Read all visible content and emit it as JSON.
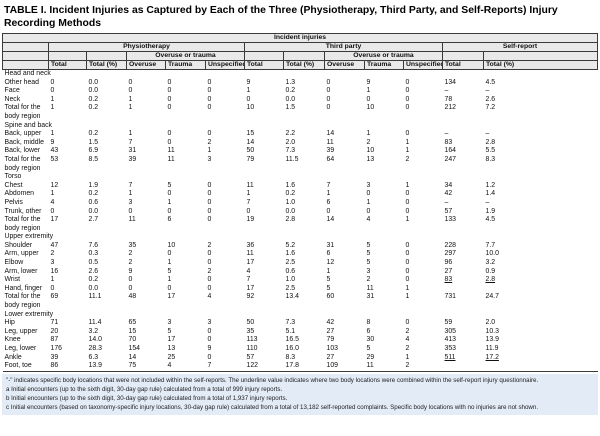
{
  "title": "TABLE I. Incident Injuries as Captured by Each of the Three (Physiotherapy, Third Party, and Self-Reports) Injury Recording Methods",
  "table": {
    "spanner": "Incident injuries",
    "groups": {
      "physiotherapy": "Physiotherapy",
      "third_party": "Third party",
      "self_report": "Self-report"
    },
    "overuse_or_trauma": "Overuse or trauma",
    "columns": [
      "Total",
      "Total (%)",
      "Overuse",
      "Trauma",
      "Unspecified",
      "Total",
      "Total (%)",
      "Overuse",
      "Trauma",
      "Unspecified",
      "Total",
      "Total (%)"
    ],
    "sections": [
      {
        "header": "Head and neck",
        "rows": [
          {
            "label": "Other head",
            "values": [
              "0",
              "0.0",
              "0",
              "0",
              "0",
              "9",
              "1.3",
              "0",
              "9",
              "0",
              "134",
              "4.5"
            ]
          },
          {
            "label": "Face",
            "values": [
              "0",
              "0.0",
              "0",
              "0",
              "0",
              "1",
              "0.2",
              "0",
              "1",
              "0",
              "–",
              "–"
            ]
          },
          {
            "label": "Neck",
            "values": [
              "1",
              "0.2",
              "1",
              "0",
              "0",
              "0",
              "0.0",
              "0",
              "0",
              "0",
              "78",
              "2.6"
            ]
          },
          {
            "label": "Total for the body region",
            "values": [
              "1",
              "0.2",
              "1",
              "0",
              "0",
              "10",
              "1.5",
              "0",
              "10",
              "0",
              "212",
              "7.2"
            ]
          }
        ]
      },
      {
        "header": "Spine and back",
        "rows": [
          {
            "label": "Back, upper",
            "values": [
              "1",
              "0.2",
              "1",
              "0",
              "0",
              "15",
              "2.2",
              "14",
              "1",
              "0",
              "–",
              "–"
            ]
          },
          {
            "label": "Back, middle",
            "values": [
              "9",
              "1.5",
              "7",
              "0",
              "2",
              "14",
              "2.0",
              "11",
              "2",
              "1",
              "83",
              "2.8"
            ]
          },
          {
            "label": "Back, lower",
            "values": [
              "43",
              "6.9",
              "31",
              "11",
              "1",
              "50",
              "7.3",
              "39",
              "10",
              "1",
              "164",
              "5.5"
            ]
          },
          {
            "label": "Total for the body region",
            "values": [
              "53",
              "8.5",
              "39",
              "11",
              "3",
              "79",
              "11.5",
              "64",
              "13",
              "2",
              "247",
              "8.3"
            ]
          }
        ]
      },
      {
        "header": "Torso",
        "rows": [
          {
            "label": "Chest",
            "values": [
              "12",
              "1.9",
              "7",
              "5",
              "0",
              "11",
              "1.6",
              "7",
              "3",
              "1",
              "34",
              "1.2"
            ]
          },
          {
            "label": "Abdomen",
            "values": [
              "1",
              "0.2",
              "1",
              "0",
              "0",
              "1",
              "0.2",
              "1",
              "0",
              "0",
              "42",
              "1.4"
            ]
          },
          {
            "label": "Pelvis",
            "values": [
              "4",
              "0.6",
              "3",
              "1",
              "0",
              "7",
              "1.0",
              "6",
              "1",
              "0",
              "–",
              "–"
            ]
          },
          {
            "label": "Trunk, other",
            "values": [
              "0",
              "0.0",
              "0",
              "0",
              "0",
              "0",
              "0.0",
              "0",
              "0",
              "0",
              "57",
              "1.9"
            ]
          },
          {
            "label": "Total for the body region",
            "values": [
              "17",
              "2.7",
              "11",
              "6",
              "0",
              "19",
              "2.8",
              "14",
              "4",
              "1",
              "133",
              "4.5"
            ]
          }
        ]
      },
      {
        "header": "Upper extremity",
        "rows": [
          {
            "label": "Shoulder",
            "values": [
              "47",
              "7.6",
              "35",
              "10",
              "2",
              "36",
              "5.2",
              "31",
              "5",
              "0",
              "228",
              "7.7"
            ]
          },
          {
            "label": "Arm, upper",
            "values": [
              "2",
              "0.3",
              "2",
              "0",
              "0",
              "11",
              "1.6",
              "6",
              "5",
              "0",
              "297",
              "10.0"
            ]
          },
          {
            "label": "Elbow",
            "values": [
              "3",
              "0.5",
              "2",
              "1",
              "0",
              "17",
              "2.5",
              "12",
              "5",
              "0",
              "96",
              "3.2"
            ]
          },
          {
            "label": "Arm, lower",
            "values": [
              "16",
              "2.6",
              "9",
              "5",
              "2",
              "4",
              "0.6",
              "1",
              "3",
              "0",
              "27",
              "0.9"
            ]
          },
          {
            "label": "Wrist",
            "values": [
              "1",
              "0.2",
              "0",
              "1",
              "0",
              "7",
              "1.0",
              "5",
              "2",
              "0",
              "83",
              "2.8"
            ],
            "underline": [
              10,
              11
            ]
          },
          {
            "label": "Hand, finger",
            "values": [
              "0",
              "0.0",
              "0",
              "0",
              "0",
              "17",
              "2.5",
              "5",
              "11",
              "1",
              "",
              ""
            ]
          },
          {
            "label": "Total for the body region",
            "values": [
              "69",
              "11.1",
              "48",
              "17",
              "4",
              "92",
              "13.4",
              "60",
              "31",
              "1",
              "731",
              "24.7"
            ]
          }
        ]
      },
      {
        "header": "Lower extremity",
        "rows": [
          {
            "label": "Hip",
            "values": [
              "71",
              "11.4",
              "65",
              "3",
              "3",
              "50",
              "7.3",
              "42",
              "8",
              "0",
              "59",
              "2.0"
            ]
          },
          {
            "label": "Leg, upper",
            "values": [
              "20",
              "3.2",
              "15",
              "5",
              "0",
              "35",
              "5.1",
              "27",
              "6",
              "2",
              "305",
              "10.3"
            ]
          },
          {
            "label": "Knee",
            "values": [
              "87",
              "14.0",
              "70",
              "17",
              "0",
              "113",
              "16.5",
              "79",
              "30",
              "4",
              "413",
              "13.9"
            ]
          },
          {
            "label": "Leg, lower",
            "values": [
              "176",
              "28.3",
              "154",
              "13",
              "9",
              "110",
              "16.0",
              "103",
              "5",
              "2",
              "353",
              "11.9"
            ]
          },
          {
            "label": "Ankle",
            "values": [
              "39",
              "6.3",
              "14",
              "25",
              "0",
              "57",
              "8.3",
              "27",
              "29",
              "1",
              "511",
              "17.2"
            ],
            "underline": [
              10,
              11
            ]
          },
          {
            "label": "Foot, toe",
            "values": [
              "86",
              "13.9",
              "75",
              "4",
              "7",
              "122",
              "17.8",
              "109",
              "11",
              "2",
              "",
              ""
            ]
          }
        ]
      }
    ]
  },
  "footnotes": [
    "\"-\" indicates specific body locations that were not included within the self-reports. The underline value indicates where two body locations were combined within the self-report injury questionnaire.",
    "a Initial encounters (up to the sixth digit, 30-day gap rule) calculated from a total of 999 injury reports.",
    "b Initial encounters (up to the sixth digit, 30-day gap rule) calculated from a total of 1,937 injury reports.",
    "c Initial encounters (based on taxonomy-specific injury locations, 30-day gap rule) calculated from a total of 13,182 self-reported complaints. Specific body locations with no injuries are not shown."
  ]
}
